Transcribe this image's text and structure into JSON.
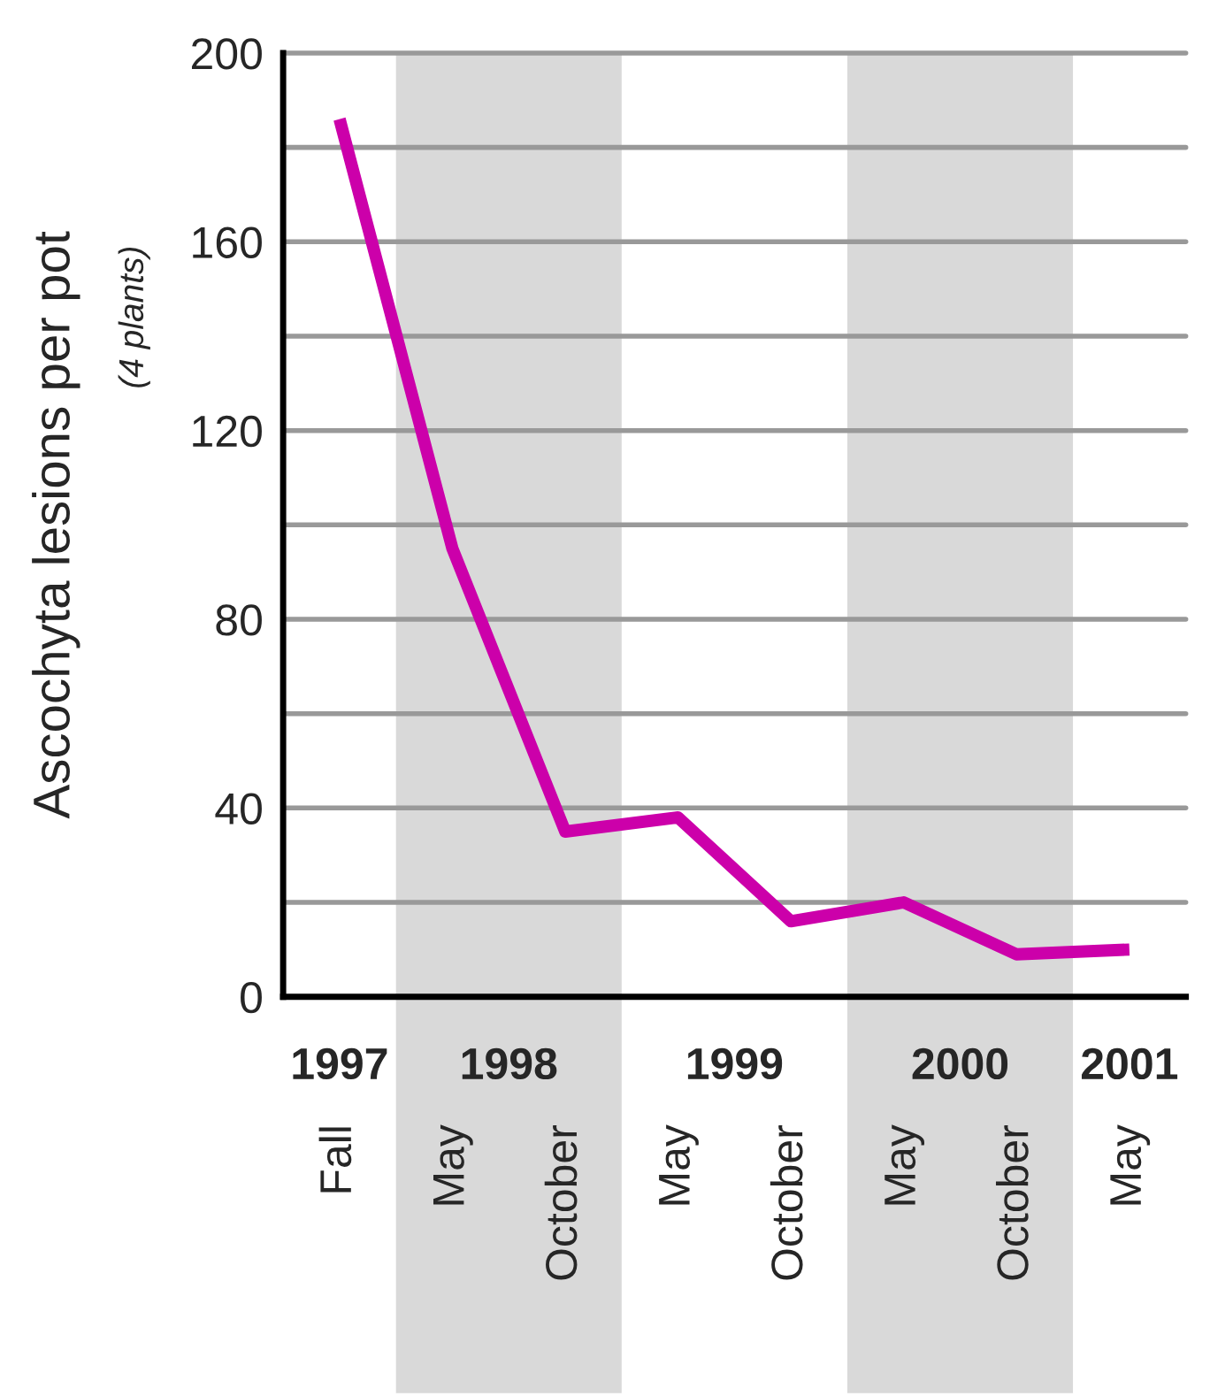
{
  "chart_data": {
    "type": "line",
    "ylabel": "Ascochyta lesions per pot",
    "annotations": [
      "(4 plants)",
      "1997",
      "1998",
      "1999",
      "2000",
      "2001"
    ],
    "categories": [
      "Fall",
      "May",
      "October",
      "May",
      "October",
      "May",
      "October",
      "May"
    ],
    "series": [
      {
        "color": "#cc00aa",
        "values": [
          186,
          95,
          35,
          38,
          16,
          20,
          9,
          10
        ]
      }
    ],
    "ylim": [
      0,
      200
    ],
    "yticks": [
      0,
      {
        "value": 20,
        "label": null
      },
      40,
      {
        "value": 60,
        "label": null
      },
      80,
      {
        "value": 100,
        "label": null
      },
      120,
      {
        "value": 140,
        "label": null
      },
      160,
      {
        "value": 180,
        "label": null
      },
      200
    ],
    "grid": "y",
    "legend": false,
    "marker": "none",
    "line_style": "solid"
  }
}
